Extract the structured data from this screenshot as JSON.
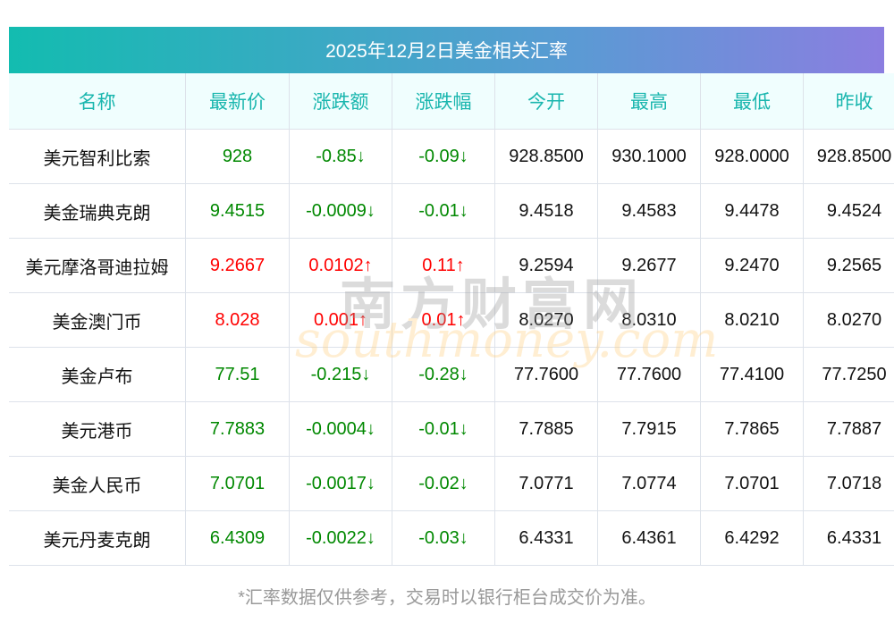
{
  "title": "2025年12月2日美金相关汇率",
  "headers": [
    "名称",
    "最新价",
    "涨跌额",
    "涨跌幅",
    "今开",
    "最高",
    "最低",
    "昨收"
  ],
  "rows": [
    {
      "name": "美元智利比索",
      "price": "928",
      "change": "-0.85↓",
      "pct": "-0.09↓",
      "open": "928.8500",
      "high": "930.1000",
      "low": "928.0000",
      "prev": "928.8500",
      "dir": "down"
    },
    {
      "name": "美金瑞典克朗",
      "price": "9.4515",
      "change": "-0.0009↓",
      "pct": "-0.01↓",
      "open": "9.4518",
      "high": "9.4583",
      "low": "9.4478",
      "prev": "9.4524",
      "dir": "down"
    },
    {
      "name": "美元摩洛哥迪拉姆",
      "price": "9.2667",
      "change": "0.0102↑",
      "pct": "0.11↑",
      "open": "9.2594",
      "high": "9.2677",
      "low": "9.2470",
      "prev": "9.2565",
      "dir": "up"
    },
    {
      "name": "美金澳门币",
      "price": "8.028",
      "change": "0.001↑",
      "pct": "0.01↑",
      "open": "8.0270",
      "high": "8.0310",
      "low": "8.0210",
      "prev": "8.0270",
      "dir": "up"
    },
    {
      "name": "美金卢布",
      "price": "77.51",
      "change": "-0.215↓",
      "pct": "-0.28↓",
      "open": "77.7600",
      "high": "77.7600",
      "low": "77.4100",
      "prev": "77.7250",
      "dir": "down"
    },
    {
      "name": "美元港币",
      "price": "7.7883",
      "change": "-0.0004↓",
      "pct": "-0.01↓",
      "open": "7.7885",
      "high": "7.7915",
      "low": "7.7865",
      "prev": "7.7887",
      "dir": "down"
    },
    {
      "name": "美金人民币",
      "price": "7.0701",
      "change": "-0.0017↓",
      "pct": "-0.02↓",
      "open": "7.0771",
      "high": "7.0774",
      "low": "7.0701",
      "prev": "7.0718",
      "dir": "down"
    },
    {
      "name": "美元丹麦克朗",
      "price": "6.4309",
      "change": "-0.0022↓",
      "pct": "-0.03↓",
      "open": "6.4331",
      "high": "6.4361",
      "low": "6.4292",
      "prev": "6.4331",
      "dir": "down"
    }
  ],
  "watermark": {
    "cn": "南方财富网",
    "en": "southmoney.com"
  },
  "note": "*汇率数据仅供参考，交易时以银行柜台成交价为准。",
  "colors": {
    "up": "#ff0000",
    "down": "#008800",
    "header_text": "#19b6ae"
  }
}
